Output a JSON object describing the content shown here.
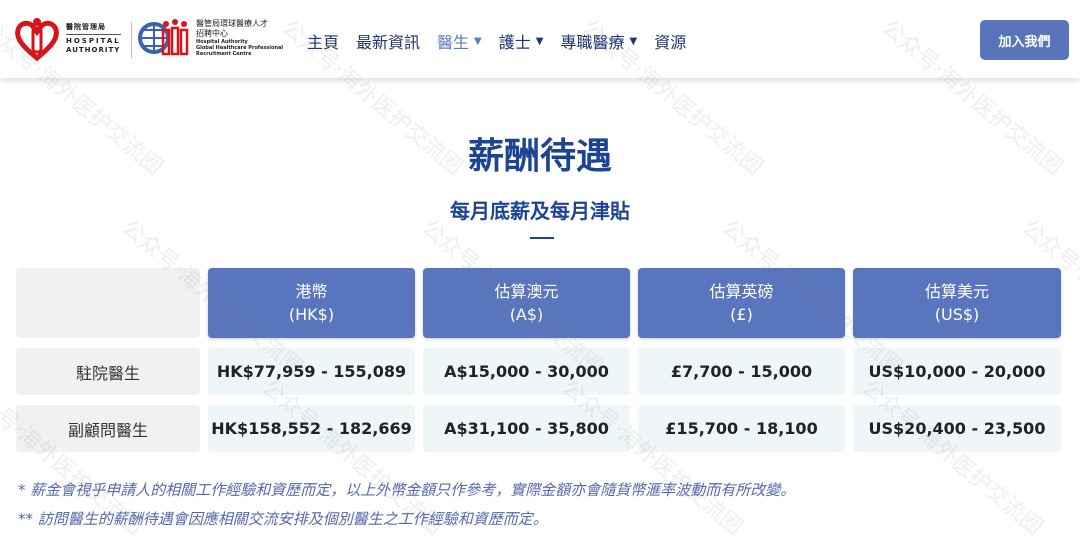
{
  "header": {
    "logo_ha": {
      "zh": "醫院管理局",
      "en1": "HOSPITAL",
      "en2": "AUTHORITY"
    },
    "logo_ghprc": {
      "zh1": "醫管局環球醫療人才",
      "zh2": "招聘中心",
      "en1": "Hospital Authority",
      "en2": "Global Healthcare Professional",
      "en3": "Recruitment Centre"
    },
    "nav": [
      {
        "label": "主頁"
      },
      {
        "label": "最新資訊"
      },
      {
        "label": "醫生",
        "active": true,
        "dropdown": true
      },
      {
        "label": "護士",
        "dropdown": true
      },
      {
        "label": "專職醫療",
        "dropdown": true
      },
      {
        "label": "資源"
      }
    ],
    "join_label": "加入我們"
  },
  "main": {
    "title": "薪酬待遇",
    "subtitle": "每月底薪及每月津貼",
    "table": {
      "headers": [
        [
          "港幣",
          "(HK$)"
        ],
        [
          "估算澳元",
          "(A$)"
        ],
        [
          "估算英磅",
          "(£)"
        ],
        [
          "估算美元",
          "(US$)"
        ]
      ],
      "rows": [
        {
          "label": "駐院醫生",
          "values": [
            "HK$77,959 - 155,089",
            "A$15,000 - 30,000",
            "£7,700 - 15,000",
            "US$10,000 - 20,000"
          ]
        },
        {
          "label": "副顧問醫生",
          "values": [
            "HK$158,552 - 182,669",
            "A$31,100 - 35,800",
            "£15,700 - 18,100",
            "US$20,400 - 23,500"
          ]
        }
      ]
    },
    "notes": [
      "* 薪金會視乎申請人的相關工作經驗和資歷而定，以上外幣金額只作參考，實際金額亦會隨貨幣滙率波動而有所改變。",
      "** 訪問醫生的薪酬待遇會因應相關交流安排及個別醫生之工作經驗和資歷而定。"
    ]
  },
  "watermark": "公众号·海外医护交流圈",
  "colors": {
    "primary": "#1d4393",
    "header_cell": "#5875bd",
    "button": "#5874bb",
    "brand_red": "#d7141a"
  }
}
